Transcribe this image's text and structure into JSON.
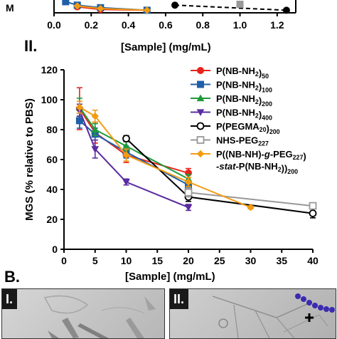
{
  "panel_b_label": "B.",
  "main_panel_label": "II.",
  "micrograph_labels": [
    "I.",
    "II."
  ],
  "chart_data": [
    {
      "type": "line",
      "xlabel": "[Sample] (mg/mL)",
      "ylabel": "",
      "xlim": [
        0,
        1.3
      ],
      "xticks": [
        0.0,
        0.2,
        0.4,
        0.6,
        0.8,
        1.0,
        1.2
      ],
      "xtick_labels": [
        "0.0",
        "0.2",
        "0.4",
        "0.6",
        "0.8",
        "1.0",
        "1.2"
      ],
      "series": [
        {
          "color": "#e8231c",
          "marker": "circle",
          "x": [
            0.125,
            0.25,
            0.5
          ],
          "y": [
            7,
            4,
            3
          ]
        },
        {
          "color": "#1f5fa8",
          "marker": "square",
          "x": [
            0.0625,
            0.125,
            0.25,
            0.5
          ],
          "y": [
            13,
            9,
            6,
            3
          ]
        },
        {
          "color": "#f39c12",
          "marker": "diamond",
          "x": [
            0.125,
            0.25,
            0.5
          ],
          "y": [
            8,
            5,
            3
          ]
        },
        {
          "color": "#000000",
          "marker": "circle",
          "dash": true,
          "x": [
            0.65,
            1.25
          ],
          "y": [
            9,
            3
          ]
        },
        {
          "color": "#999999",
          "marker": "square",
          "x": [
            1.0
          ],
          "y": [
            10
          ]
        }
      ]
    },
    {
      "type": "line",
      "xlabel": "[Sample] (mg/mL)",
      "ylabel": "MGS (% relative to PBS)",
      "xlim": [
        0,
        40
      ],
      "ylim": [
        0,
        120
      ],
      "xticks": [
        0,
        5,
        10,
        15,
        20,
        25,
        30,
        35,
        40
      ],
      "yticks": [
        0,
        20,
        40,
        60,
        80,
        100,
        120
      ],
      "legend_position": "top-right",
      "series": [
        {
          "name_parts": [
            [
              "P(NB-NH",
              ""
            ],
            [
              "2",
              "sub"
            ],
            [
              ")",
              ""
            ],
            [
              "50",
              "sub"
            ]
          ],
          "color": "#e8231c",
          "marker": "circle-filled",
          "x": [
            2.5,
            5,
            10,
            20
          ],
          "y": [
            94,
            78,
            63,
            51
          ],
          "err": [
            14,
            7,
            5,
            3
          ]
        },
        {
          "name_parts": [
            [
              "P(NB-NH",
              ""
            ],
            [
              "2",
              "sub"
            ],
            [
              ")",
              ""
            ],
            [
              "100",
              "sub"
            ]
          ],
          "color": "#1f5fa8",
          "marker": "square-filled",
          "x": [
            2.5,
            5,
            10,
            20
          ],
          "y": [
            86,
            77,
            65,
            43
          ],
          "err": [
            5,
            4,
            4,
            3
          ]
        },
        {
          "name_parts": [
            [
              "P(NB-NH",
              ""
            ],
            [
              "2",
              "sub"
            ],
            [
              ")",
              ""
            ],
            [
              "200",
              "sub"
            ]
          ],
          "color": "#1f9a3a",
          "marker": "triangle-filled",
          "x": [
            2.5,
            5,
            10,
            20
          ],
          "y": [
            95,
            80,
            69,
            47
          ],
          "err": [
            6,
            4,
            3,
            3
          ]
        },
        {
          "name_parts": [
            [
              "P(NB-NH",
              ""
            ],
            [
              "2",
              "sub"
            ],
            [
              ")",
              ""
            ],
            [
              "400",
              "sub"
            ]
          ],
          "color": "#5a2ca0",
          "marker": "triangle-down-filled",
          "x": [
            2.5,
            5,
            10,
            20
          ],
          "y": [
            93,
            67,
            45,
            28
          ],
          "err": [
            4,
            6,
            2,
            2
          ]
        },
        {
          "name_parts": [
            [
              "P(PEGMA",
              ""
            ],
            [
              "20",
              "sub"
            ],
            [
              ")",
              ""
            ],
            [
              "200",
              "sub"
            ]
          ],
          "color": "#000000",
          "marker": "circle-open",
          "x": [
            10,
            20,
            40
          ],
          "y": [
            74,
            35,
            24
          ],
          "err": [
            2,
            3,
            3
          ]
        },
        {
          "name_parts": [
            [
              "NHS-PEG",
              ""
            ],
            [
              "227",
              "sub"
            ]
          ],
          "color": "#999999",
          "marker": "square-open",
          "x": [
            20,
            40
          ],
          "y": [
            38,
            29
          ],
          "err": [
            3,
            2
          ]
        },
        {
          "name_parts": [
            [
              "P((NB-NH)-",
              ""
            ],
            [
              "g",
              "italic"
            ],
            [
              "-PEG",
              ""
            ],
            [
              "227",
              "sub"
            ],
            [
              ")",
              ""
            ]
          ],
          "name_line2_parts": [
            [
              "-",
              ""
            ],
            [
              "stat",
              "italic"
            ],
            [
              "-P(NB-NH",
              ""
            ],
            [
              "2",
              "sub"
            ],
            [
              ")",
              ""
            ],
            [
              ")",
              ""
            ],
            [
              "200",
              "sub"
            ]
          ],
          "color": "#f39c12",
          "marker": "diamond-filled",
          "x": [
            2.5,
            5,
            10,
            20,
            30
          ],
          "y": [
            95,
            89,
            63,
            45,
            28
          ],
          "err": [
            4,
            4,
            4,
            3,
            1
          ]
        }
      ]
    }
  ]
}
